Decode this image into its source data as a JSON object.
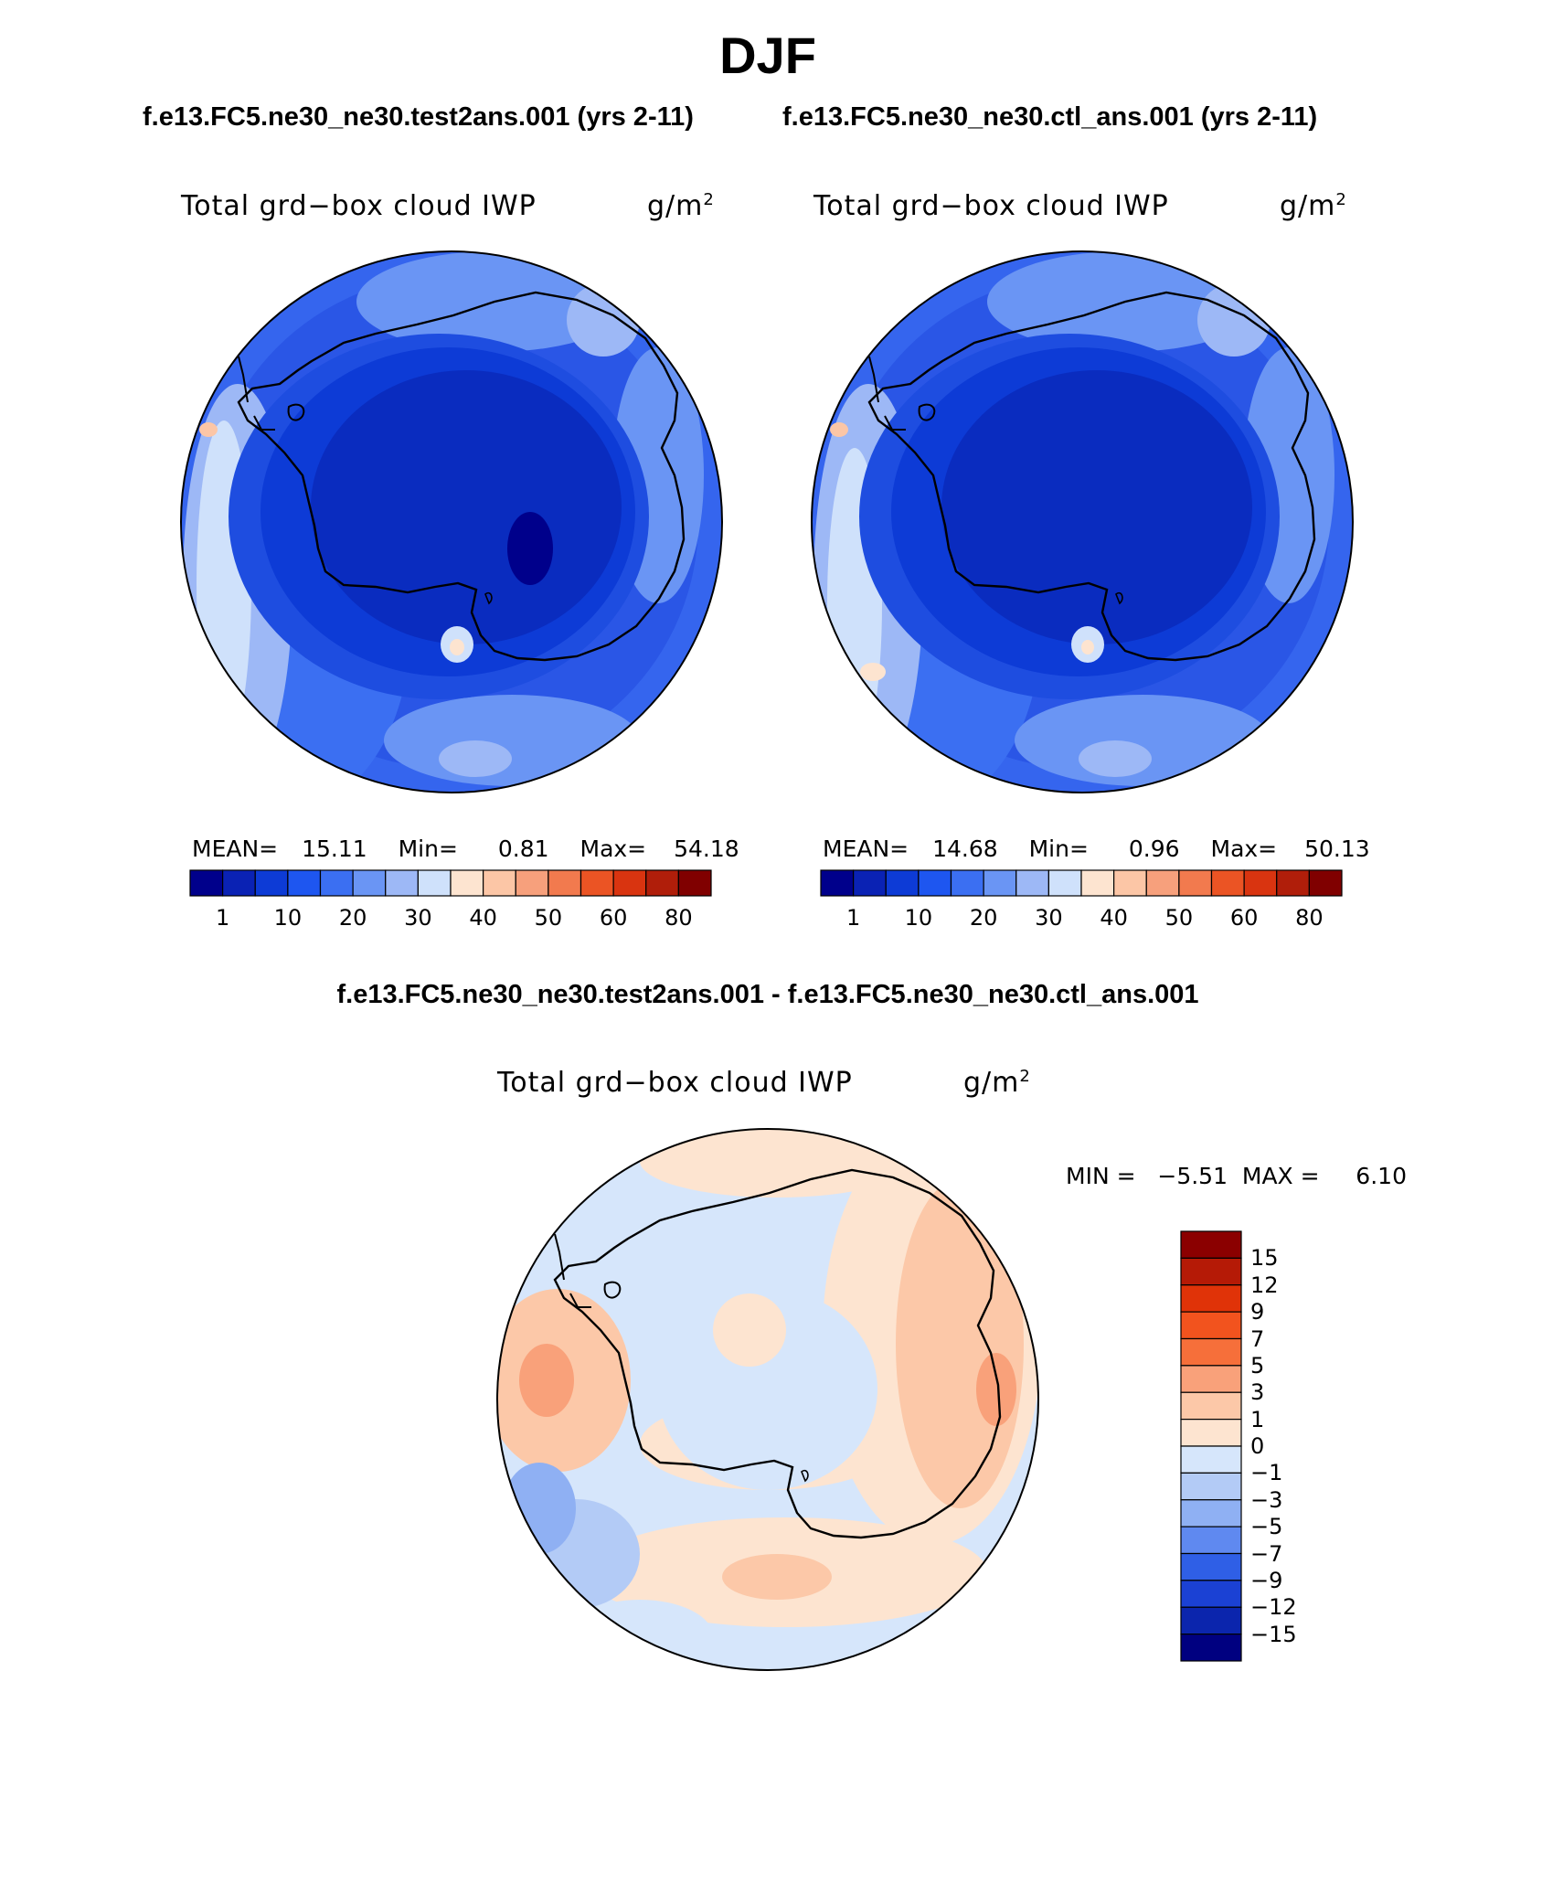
{
  "header": {
    "season": "DJF",
    "case_left": "f.e13.FC5.ne30_ne30.test2ans.001 (yrs 2-11)",
    "case_right": "f.e13.FC5.ne30_ne30.ctl_ans.001 (yrs 2-11)",
    "diff_title": "f.e13.FC5.ne30_ne30.test2ans.001 - f.e13.FC5.ne30_ne30.ctl_ans.001"
  },
  "panels": {
    "left": {
      "variable": "Total grd−box cloud IWP",
      "units": "g/m",
      "units_sup": "2",
      "mean_label": "MEAN=",
      "mean": "15.11",
      "min_label": "Min=",
      "min": "0.81",
      "max_label": "Max=",
      "max": "54.18"
    },
    "right": {
      "variable": "Total grd−box cloud IWP",
      "units": "g/m",
      "units_sup": "2",
      "mean_label": "MEAN=",
      "mean": "14.68",
      "min_label": "Min=",
      "min": "0.96",
      "max_label": "Max=",
      "max": "50.13"
    },
    "diff": {
      "variable": "Total grd−box cloud IWP",
      "units": "g/m",
      "units_sup": "2",
      "minmax": "MIN =   −5.51  MAX =     6.10"
    }
  },
  "colorbar_abs": {
    "colors": [
      "#00008b",
      "#0a22b4",
      "#0d3bd6",
      "#1e56f0",
      "#3b6ff2",
      "#6a95f4",
      "#9db8f6",
      "#cfe1fb",
      "#fde4d0",
      "#fcc6a6",
      "#f7a07c",
      "#f27a4e",
      "#eb5424",
      "#d93410",
      "#b01e0a",
      "#800000"
    ],
    "labels": [
      "1",
      "10",
      "20",
      "30",
      "40",
      "50",
      "60",
      "80"
    ]
  },
  "colorbar_diff": {
    "colors": [
      "#8b0000",
      "#b51a06",
      "#e03308",
      "#f2531e",
      "#f66f3a",
      "#f9a17a",
      "#fcc8a8",
      "#fde4d0",
      "#d6e6fb",
      "#b3cbf6",
      "#8fb0f3",
      "#5f89f0",
      "#2f5fe6",
      "#1b41d4",
      "#0b25ad",
      "#000080"
    ],
    "labels": [
      "15",
      "12",
      "9",
      "7",
      "5",
      "3",
      "1",
      "0",
      "−1",
      "−3",
      "−5",
      "−7",
      "−9",
      "−12",
      "−15"
    ]
  }
}
